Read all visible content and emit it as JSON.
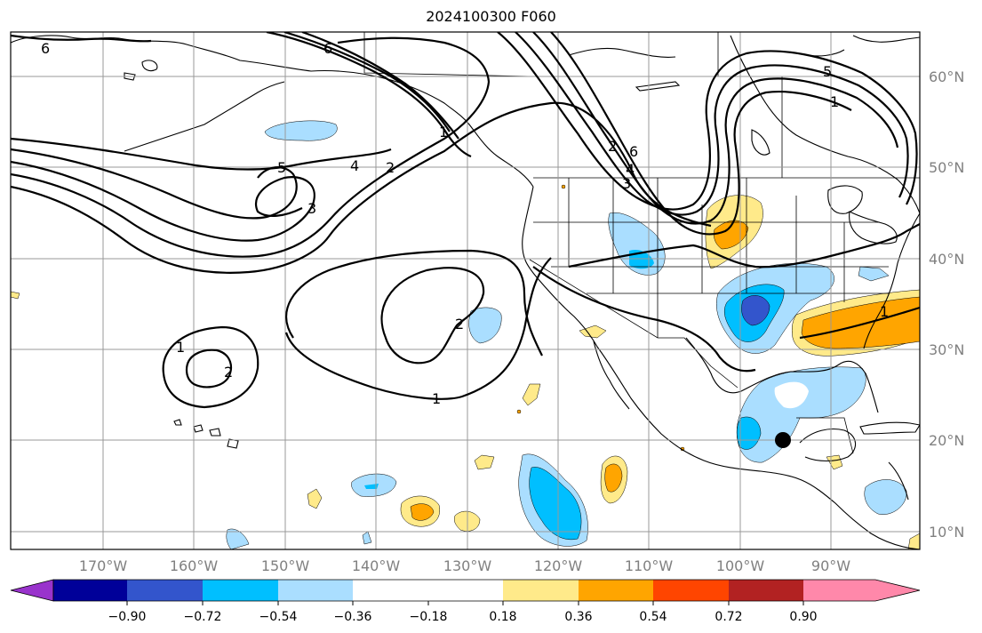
{
  "title": "2024100300 F060",
  "lat_labels": [
    "60°N",
    "50°N",
    "40°N",
    "30°N",
    "20°N",
    "10°N"
  ],
  "lon_labels": [
    "170°W",
    "160°W",
    "150°W",
    "140°W",
    "130°W",
    "120°W",
    "110°W",
    "100°W",
    "90°W"
  ],
  "contour_labels": [
    "6",
    "6",
    "5",
    "4",
    "3",
    "2",
    "2",
    "2",
    "1",
    "1",
    "1",
    "1",
    "2",
    "5",
    "3",
    "4",
    "6",
    "1"
  ],
  "colorbar": {
    "ticks": [
      "−0.90",
      "−0.72",
      "−0.54",
      "−0.36",
      "−0.18",
      "0.18",
      "0.36",
      "0.54",
      "0.72",
      "0.90"
    ],
    "colors": [
      "#9933cc",
      "#000099",
      "#3355cc",
      "#00bfff",
      "#aadeff",
      "#ffffff",
      "#ffea8a",
      "#ffa500",
      "#ff4500",
      "#b22222",
      "#ff88aa"
    ]
  },
  "marker": {
    "label": "",
    "color": "#000000"
  }
}
